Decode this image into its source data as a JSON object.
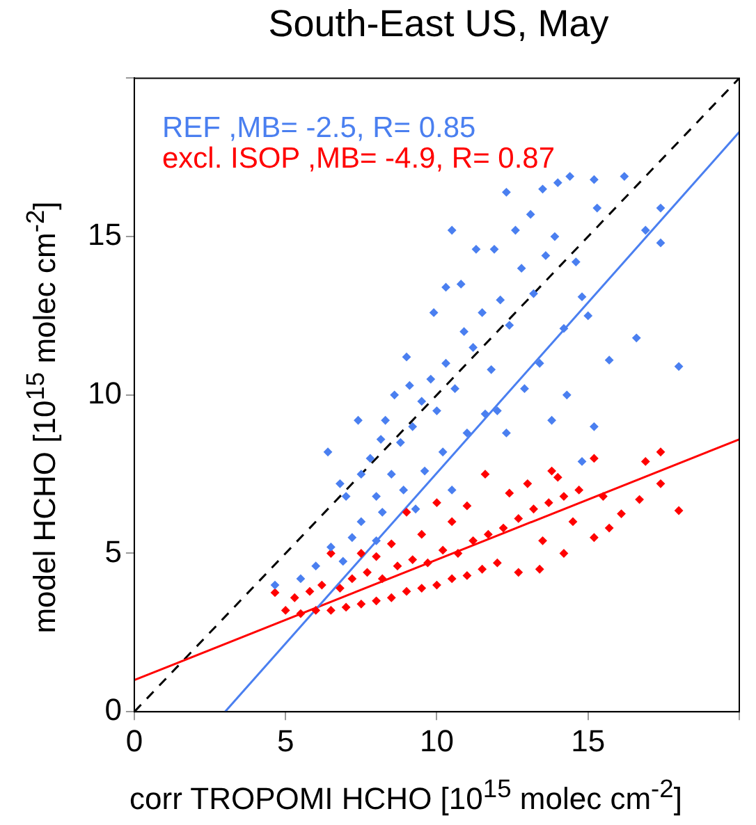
{
  "chart_data": {
    "type": "scatter",
    "title": "South-East US, May",
    "xlabel": "corr TROPOMI HCHO [10$^{15}$ molec cm$^{-2}$]",
    "ylabel": "model HCHO [10$^{15}$ molec cm$^{-2}$]",
    "xlim": [
      0,
      20
    ],
    "ylim": [
      0,
      20
    ],
    "xticks": [
      0,
      5,
      10,
      15,
      {
        "value": 20,
        "label": null
      }
    ],
    "yticks": [
      0,
      5,
      10,
      15,
      {
        "value": 20,
        "label": null
      }
    ],
    "marker": "diamond",
    "legend": "top left",
    "series": [
      {
        "name": "REF ,MB= -2.5, R= 0.85",
        "color": "#4a7ff0",
        "x": [
          12.3,
          13.5,
          14.4,
          15.2,
          16.2,
          14.0,
          10.5,
          17.4,
          16.9,
          17.4,
          18.0,
          16.6,
          15.7,
          10.3,
          15.3,
          13.1,
          11.3,
          9.1,
          14.8,
          14.2,
          6.4,
          4.65,
          8.15,
          15.2,
          14.8,
          6.9,
          7.5,
          7.5,
          8.0,
          8.5,
          8.8,
          9.2,
          9.5,
          9.8,
          10.0,
          10.3,
          10.6,
          10.9,
          11.2,
          11.5,
          11.8,
          12.1,
          12.4,
          12.8,
          13.2,
          13.6,
          12.0,
          11.0,
          10.2,
          9.6,
          8.9,
          8.2,
          7.2,
          6.5,
          6.0,
          5.5,
          9.0,
          8.6,
          8.3,
          7.8,
          7.0,
          10.8,
          12.6,
          13.9,
          14.6,
          13.4,
          12.9,
          11.6,
          10.5,
          9.3,
          8.0,
          14.3,
          15.0,
          9.9,
          11.9,
          7.4,
          6.8,
          12.3,
          13.8
        ],
        "values": [
          16.4,
          16.5,
          16.9,
          16.8,
          16.9,
          16.7,
          15.2,
          15.9,
          15.2,
          14.8,
          10.9,
          11.8,
          11.1,
          13.4,
          15.9,
          15.7,
          14.6,
          10.3,
          13.1,
          12.1,
          8.2,
          4.0,
          8.6,
          9.0,
          7.9,
          4.75,
          7.5,
          6.0,
          6.8,
          7.5,
          8.5,
          9.0,
          9.8,
          10.5,
          9.5,
          11.0,
          10.2,
          12.0,
          11.5,
          12.6,
          10.8,
          13.0,
          12.2,
          14.0,
          13.2,
          14.4,
          9.5,
          8.8,
          8.2,
          7.6,
          7.0,
          6.3,
          5.5,
          5.2,
          4.6,
          4.2,
          11.2,
          10.0,
          9.2,
          8.0,
          6.8,
          13.5,
          15.2,
          15.0,
          14.2,
          11.0,
          10.2,
          9.4,
          7.0,
          6.4,
          5.4,
          10.0,
          12.5,
          12.6,
          14.6,
          9.2,
          7.2,
          8.8,
          9.2
        ]
      },
      {
        "name": "excl. ISOP ,MB= -4.9, R= 0.87",
        "color": "#ff0000",
        "x": [
          5.0,
          5.5,
          6.0,
          6.5,
          7.0,
          7.5,
          8.0,
          8.5,
          9.0,
          9.5,
          10.0,
          10.5,
          11.0,
          11.5,
          12.0,
          12.7,
          13.4,
          14.2,
          15.2,
          15.7,
          16.1,
          18.0,
          17.4,
          16.9,
          17.4,
          16.7,
          15.2,
          11.6,
          4.65,
          6.5,
          5.3,
          5.8,
          6.2,
          6.8,
          7.2,
          7.7,
          8.2,
          8.7,
          9.2,
          9.7,
          10.2,
          10.7,
          11.2,
          11.7,
          12.2,
          12.7,
          13.2,
          13.7,
          14.2,
          14.7,
          13.0,
          13.8,
          12.4,
          10.5,
          9.5,
          8.5,
          7.5,
          9.0,
          10.0,
          14.5,
          13.5,
          15.5,
          14.0,
          11.0,
          8.0
        ],
        "values": [
          3.2,
          3.1,
          3.2,
          3.2,
          3.3,
          3.4,
          3.5,
          3.6,
          3.8,
          3.9,
          4.0,
          4.2,
          4.3,
          4.5,
          4.7,
          4.4,
          4.5,
          5.0,
          5.5,
          5.8,
          6.25,
          6.35,
          8.2,
          7.9,
          7.2,
          6.7,
          8.0,
          7.5,
          3.76,
          5.0,
          3.6,
          3.8,
          4.0,
          3.9,
          4.2,
          4.4,
          4.2,
          4.6,
          4.8,
          4.7,
          5.1,
          5.0,
          5.4,
          5.6,
          5.8,
          6.1,
          6.4,
          6.6,
          6.8,
          7.0,
          7.2,
          7.6,
          6.9,
          6.0,
          5.6,
          5.3,
          5.0,
          6.3,
          6.6,
          6.0,
          5.4,
          6.8,
          7.4,
          6.5,
          4.9
        ]
      },
      {
        "type": "line",
        "color": "#4a7ff0",
        "x": [
          3,
          20
        ],
        "values": [
          0,
          18.3
        ],
        "marker": "none",
        "line_style": "solid"
      },
      {
        "type": "line",
        "color": "#ff0000",
        "x": [
          0,
          20
        ],
        "values": [
          1.0,
          8.6
        ],
        "marker": "none",
        "line_style": "solid"
      },
      {
        "type": "line",
        "color": "#000000",
        "x": [
          0,
          20
        ],
        "values": [
          0,
          20
        ],
        "marker": "none",
        "line_style": "dashed"
      }
    ]
  }
}
